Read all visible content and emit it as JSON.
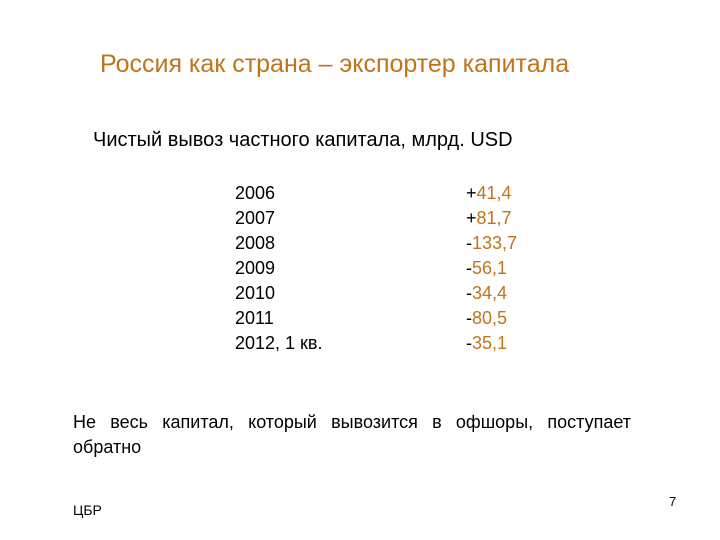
{
  "slide": {
    "title": "Россия как страна – экспортер капитала",
    "subtitle": "Чистый вывоз частного капитала, млрд. USD",
    "rows": [
      {
        "year": "2006",
        "sign": "+",
        "value": "41,4"
      },
      {
        "year": "2007",
        "sign": "+",
        "value": "81,7"
      },
      {
        "year": "2008",
        "sign": "-",
        "value": "133,7"
      },
      {
        "year": "2009",
        "sign": "-",
        "value": "56,1"
      },
      {
        "year": "2010",
        "sign": "-",
        "value": "34,4"
      },
      {
        "year": "2011",
        "sign": "-",
        "value": "80,5"
      },
      {
        "year": "2012, 1 кв.",
        "sign": "-",
        "value": "35,1"
      }
    ],
    "note": "Не весь капитал, который вывозится в офшоры, поступает обратно",
    "source": "ЦБР",
    "page_number": "7"
  },
  "colors": {
    "accent": "#c0741b",
    "text": "#000000",
    "background": "#ffffff"
  }
}
